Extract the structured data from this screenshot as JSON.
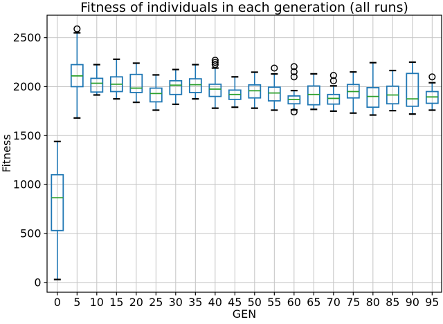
{
  "chart_data": {
    "type": "boxplot",
    "title": "Fitness of individuals in each generation (all runs)",
    "xlabel": "GEN",
    "ylabel": "Fitness",
    "categories": [
      "0",
      "5",
      "10",
      "15",
      "20",
      "25",
      "30",
      "35",
      "40",
      "45",
      "50",
      "55",
      "60",
      "65",
      "70",
      "75",
      "80",
      "85",
      "90",
      "95"
    ],
    "y_ticks": [
      0,
      500,
      1000,
      1500,
      2000,
      2500
    ],
    "ylim": [
      -100,
      2730
    ],
    "grid": true,
    "legend": "none",
    "boxes": [
      {
        "gen": "0",
        "whislo": 30,
        "q1": 530,
        "med": 865,
        "q3": 1100,
        "whishi": 1440,
        "fliers": []
      },
      {
        "gen": "5",
        "whislo": 1680,
        "q1": 2000,
        "med": 2110,
        "q3": 2225,
        "whishi": 2550,
        "fliers": [
          2590
        ]
      },
      {
        "gen": "10",
        "whislo": 1915,
        "q1": 1945,
        "med": 2035,
        "q3": 2085,
        "whishi": 2225,
        "fliers": []
      },
      {
        "gen": "15",
        "whislo": 1875,
        "q1": 1950,
        "med": 2025,
        "q3": 2100,
        "whishi": 2280,
        "fliers": []
      },
      {
        "gen": "20",
        "whislo": 1840,
        "q1": 1940,
        "med": 1985,
        "q3": 2125,
        "whishi": 2240,
        "fliers": []
      },
      {
        "gen": "25",
        "whislo": 1760,
        "q1": 1845,
        "med": 1930,
        "q3": 1985,
        "whishi": 2120,
        "fliers": []
      },
      {
        "gen": "30",
        "whislo": 1820,
        "q1": 1920,
        "med": 2015,
        "q3": 2060,
        "whishi": 2175,
        "fliers": []
      },
      {
        "gen": "35",
        "whislo": 1875,
        "q1": 1940,
        "med": 2020,
        "q3": 2080,
        "whishi": 2225,
        "fliers": []
      },
      {
        "gen": "40",
        "whislo": 1780,
        "q1": 1900,
        "med": 1975,
        "q3": 2025,
        "whishi": 2190,
        "fliers": [
          2270,
          2248,
          2226
        ]
      },
      {
        "gen": "45",
        "whislo": 1790,
        "q1": 1870,
        "med": 1920,
        "q3": 1965,
        "whishi": 2100,
        "fliers": []
      },
      {
        "gen": "50",
        "whislo": 1780,
        "q1": 1885,
        "med": 1958,
        "q3": 2018,
        "whishi": 2148,
        "fliers": []
      },
      {
        "gen": "55",
        "whislo": 1760,
        "q1": 1855,
        "med": 1935,
        "q3": 1995,
        "whishi": 2130,
        "fliers": [
          2190
        ]
      },
      {
        "gen": "60",
        "whislo": 1763,
        "q1": 1825,
        "med": 1870,
        "q3": 1905,
        "whishi": 1960,
        "fliers": [
          2205,
          2152,
          2100,
          1742
        ]
      },
      {
        "gen": "65",
        "whislo": 1768,
        "q1": 1815,
        "med": 1920,
        "q3": 2007,
        "whishi": 2131,
        "fliers": []
      },
      {
        "gen": "70",
        "whislo": 1750,
        "q1": 1822,
        "med": 1880,
        "q3": 1920,
        "whishi": 2008,
        "fliers": [
          2115,
          2060
        ]
      },
      {
        "gen": "75",
        "whislo": 1730,
        "q1": 1885,
        "med": 1950,
        "q3": 2022,
        "whishi": 2150,
        "fliers": []
      },
      {
        "gen": "80",
        "whislo": 1710,
        "q1": 1790,
        "med": 1900,
        "q3": 1990,
        "whishi": 2245,
        "fliers": []
      },
      {
        "gen": "85",
        "whislo": 1755,
        "q1": 1825,
        "med": 1915,
        "q3": 2005,
        "whishi": 2165,
        "fliers": []
      },
      {
        "gen": "90",
        "whislo": 1720,
        "q1": 1800,
        "med": 1875,
        "q3": 2135,
        "whishi": 2250,
        "fliers": []
      },
      {
        "gen": "95",
        "whislo": 1760,
        "q1": 1830,
        "med": 1895,
        "q3": 1950,
        "whishi": 2040,
        "fliers": [
          2100
        ]
      }
    ],
    "colors": {
      "box": "#1f77b4",
      "whisker": "#1f77b4",
      "median": "#2ca02c",
      "cap": "#000000",
      "flier": "#000000",
      "grid": "#c4c4c4",
      "spine": "#000000",
      "text": "#000000",
      "background": "#ffffff"
    }
  }
}
